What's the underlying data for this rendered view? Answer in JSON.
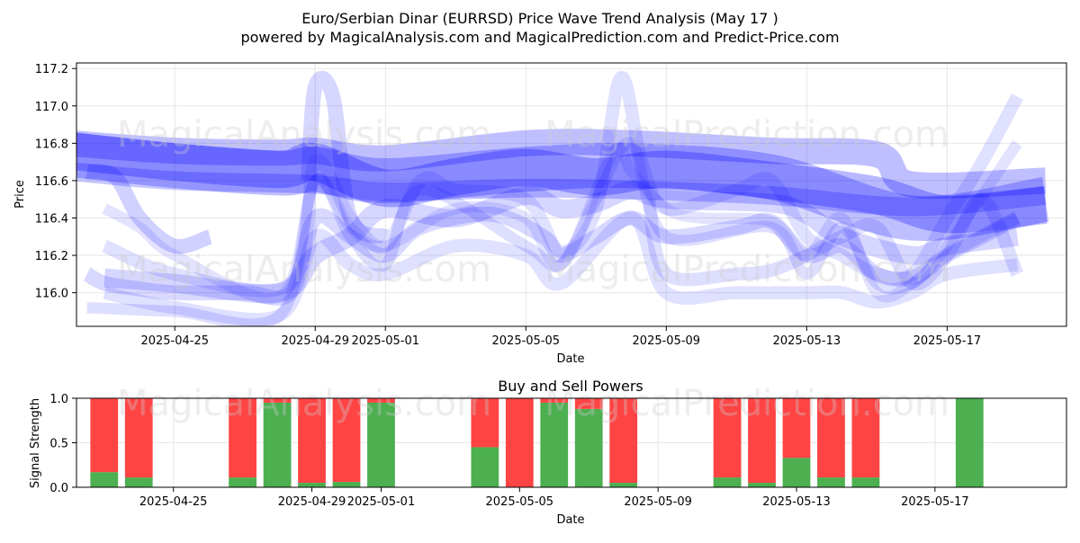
{
  "header": {
    "title": "Euro/Serbian Dinar (EURRSD) Price Wave Trend Analysis (May 17 )",
    "subtitle": "powered by MagicalAnalysis.com and MagicalPrediction.com and Predict-Price.com"
  },
  "watermarks": {
    "top_left": "MagicalAnalysis.com",
    "top_right": "MagicalPrediction.com",
    "mid_left": "MagicalAnalysis.com",
    "mid_right": "MagicalPrediction.com",
    "bottom_left": "MagicalAnalysis.com",
    "bottom_right": "MagicalPrediction.com"
  },
  "colors": {
    "wave": "#0000ff",
    "buy": "#4caf50",
    "sell": "#ff4444",
    "grid": "#e6e6e6"
  },
  "chart_data": [
    {
      "type": "area",
      "title": "",
      "xlabel": "Date",
      "ylabel": "Price",
      "xlim": [
        "2025-04-22",
        "2025-05-20"
      ],
      "ylim": [
        115.82,
        117.23
      ],
      "x_ticks": [
        "2025-04-25",
        "2025-04-29",
        "2025-05-01",
        "2025-05-05",
        "2025-05-09",
        "2025-05-13",
        "2025-05-17"
      ],
      "y_ticks": [
        116.0,
        116.2,
        116.4,
        116.6,
        116.8,
        117.0,
        117.2
      ],
      "y_tick_labels": [
        "116.0",
        "116.2",
        "116.4",
        "116.6",
        "116.8",
        "117.0",
        "117.2"
      ],
      "grid": true,
      "series": [
        {
          "x": [
            "2025-04-22",
            "2025-04-25",
            "2025-04-28",
            "2025-04-29",
            "2025-05-01",
            "2025-05-03",
            "2025-05-05",
            "2025-05-07",
            "2025-05-09",
            "2025-05-12",
            "2025-05-15",
            "2025-05-17",
            "2025-05-19.8"
          ],
          "y": [
            116.76,
            116.7,
            116.66,
            116.7,
            116.56,
            116.62,
            116.67,
            116.62,
            116.66,
            116.6,
            116.52,
            116.42,
            116.47
          ],
          "width": 0.2,
          "alpha": 0.28
        },
        {
          "x": [
            "2025-04-22",
            "2025-04-25",
            "2025-04-28",
            "2025-04-29",
            "2025-05-01",
            "2025-05-05",
            "2025-05-08",
            "2025-05-12",
            "2025-05-16",
            "2025-05-19.8"
          ],
          "y": [
            116.74,
            116.68,
            116.64,
            116.66,
            116.6,
            116.66,
            116.68,
            116.62,
            116.4,
            116.5
          ],
          "width": 0.24,
          "alpha": 0.25
        },
        {
          "x": [
            "2025-04-22",
            "2025-04-25",
            "2025-04-28",
            "2025-04-29",
            "2025-05-01",
            "2025-05-05",
            "2025-05-08",
            "2025-05-12",
            "2025-05-15",
            "2025-05-16",
            "2025-05-19.8"
          ],
          "y": [
            116.8,
            116.76,
            116.75,
            116.76,
            116.72,
            116.8,
            116.8,
            116.76,
            116.74,
            116.58,
            116.6
          ],
          "width": 0.14,
          "alpha": 0.25
        },
        {
          "x": [
            "2025-04-22",
            "2025-04-25",
            "2025-04-29",
            "2025-05-01",
            "2025-05-05",
            "2025-05-08",
            "2025-05-12",
            "2025-05-16",
            "2025-05-19.8"
          ],
          "y": [
            116.65,
            116.6,
            116.58,
            116.54,
            116.56,
            116.55,
            116.52,
            116.46,
            116.52
          ],
          "width": 0.1,
          "alpha": 0.22
        },
        {
          "x": [
            "2025-04-22.5",
            "2025-04-23.3",
            "2025-04-24",
            "2025-04-25",
            "2025-04-26"
          ],
          "y": [
            116.65,
            116.62,
            116.4,
            116.25,
            116.3
          ],
          "width": 0.08,
          "alpha": 0.18
        },
        {
          "x": [
            "2025-04-22.5",
            "2025-04-23",
            "2025-04-24",
            "2025-04-25",
            "2025-04-27",
            "2025-04-28.3",
            "2025-04-29",
            "2025-04-30",
            "2025-05-01",
            "2025-05-02",
            "2025-05-04",
            "2025-05-05.5",
            "2025-05-06",
            "2025-05-07",
            "2025-05-08",
            "2025-05-09",
            "2025-05-11",
            "2025-05-12",
            "2025-05-13",
            "2025-05-14",
            "2025-05-15",
            "2025-05-16",
            "2025-05-17",
            "2025-05-18",
            "2025-05-19"
          ],
          "y": [
            116.1,
            116.05,
            116.02,
            116.0,
            116.0,
            116.0,
            116.4,
            116.3,
            116.2,
            116.35,
            116.42,
            116.3,
            116.2,
            116.3,
            116.4,
            116.3,
            116.35,
            116.38,
            116.2,
            116.25,
            116.1,
            116.08,
            116.2,
            116.3,
            116.4
          ],
          "width": 0.08,
          "alpha": 0.15
        },
        {
          "x": [
            "2025-04-22.5",
            "2025-04-25",
            "2025-04-28",
            "2025-04-29",
            "2025-04-30",
            "2025-05-01",
            "2025-05-02",
            "2025-05-05",
            "2025-05-06",
            "2025-05-07",
            "2025-05-08",
            "2025-05-09",
            "2025-05-12",
            "2025-05-13",
            "2025-05-14",
            "2025-05-15",
            "2025-05-16",
            "2025-05-17",
            "2025-05-19"
          ],
          "y": [
            115.92,
            115.9,
            115.88,
            116.6,
            116.3,
            116.15,
            116.55,
            116.25,
            116.15,
            116.5,
            116.8,
            116.3,
            116.35,
            116.1,
            116.35,
            116.05,
            116.05,
            116.2,
            116.4
          ],
          "width": 0.06,
          "alpha": 0.13
        },
        {
          "x": [
            "2025-04-23",
            "2025-04-25",
            "2025-04-28.3",
            "2025-04-29",
            "2025-04-30",
            "2025-05-01",
            "2025-05-02",
            "2025-05-03",
            "2025-05-05",
            "2025-05-06",
            "2025-05-07",
            "2025-05-07.7",
            "2025-05-08.3",
            "2025-05-09",
            "2025-05-11",
            "2025-05-12",
            "2025-05-13",
            "2025-05-14",
            "2025-05-15",
            "2025-05-16",
            "2025-05-17",
            "2025-05-18",
            "2025-05-19"
          ],
          "y": [
            116.25,
            116.1,
            116.05,
            116.7,
            116.4,
            116.25,
            116.6,
            116.55,
            116.5,
            116.22,
            116.45,
            117.15,
            116.7,
            116.45,
            116.55,
            116.6,
            116.3,
            116.2,
            116.1,
            116.1,
            116.4,
            116.7,
            117.05
          ],
          "width": 0.07,
          "alpha": 0.12
        },
        {
          "x": [
            "2025-04-23",
            "2025-04-24",
            "2025-04-25",
            "2025-04-28",
            "2025-04-29",
            "2025-04-30",
            "2025-05-01",
            "2025-05-03",
            "2025-05-05",
            "2025-05-06",
            "2025-05-07.5",
            "2025-05-08",
            "2025-05-09",
            "2025-05-10",
            "2025-05-12",
            "2025-05-13",
            "2025-05-14",
            "2025-05-15",
            "2025-05-16",
            "2025-05-17",
            "2025-05-19"
          ],
          "y": [
            116.45,
            116.35,
            116.2,
            115.98,
            116.6,
            116.35,
            116.25,
            116.45,
            116.4,
            116.15,
            116.75,
            116.65,
            116.45,
            116.4,
            116.38,
            116.2,
            116.4,
            116.0,
            116.05,
            116.25,
            116.8
          ],
          "width": 0.06,
          "alpha": 0.11
        },
        {
          "x": [
            "2025-04-23",
            "2025-04-25",
            "2025-04-28",
            "2025-04-29",
            "2025-04-30",
            "2025-05-01",
            "2025-05-03",
            "2025-05-05",
            "2025-05-06",
            "2025-05-08",
            "2025-05-09",
            "2025-05-11",
            "2025-05-13",
            "2025-05-14",
            "2025-05-15",
            "2025-05-16",
            "2025-05-17",
            "2025-05-19"
          ],
          "y": [
            116.0,
            115.92,
            115.88,
            116.3,
            116.15,
            116.1,
            116.25,
            116.2,
            116.05,
            116.4,
            116.0,
            116.0,
            116.0,
            116.0,
            115.95,
            116.0,
            116.1,
            116.15
          ],
          "width": 0.07,
          "alpha": 0.12
        },
        {
          "x": [
            "2025-04-23",
            "2025-04-25",
            "2025-04-28",
            "2025-04-29",
            "2025-04-30",
            "2025-05-01",
            "2025-05-03",
            "2025-05-05",
            "2025-05-06",
            "2025-05-07",
            "2025-05-08",
            "2025-05-09",
            "2025-05-12",
            "2025-05-13",
            "2025-05-14",
            "2025-05-16",
            "2025-05-17",
            "2025-05-19"
          ],
          "y": [
            116.08,
            116.05,
            116.0,
            116.2,
            116.3,
            116.45,
            116.4,
            116.52,
            116.45,
            116.48,
            116.55,
            116.5,
            116.48,
            116.42,
            116.3,
            116.2,
            116.25,
            116.3
          ],
          "width": 0.1,
          "alpha": 0.16
        },
        {
          "x": [
            "2025-04-28.8",
            "2025-04-29",
            "2025-04-29.5",
            "2025-04-30",
            "2025-05-01"
          ],
          "y": [
            116.6,
            117.1,
            117.05,
            116.4,
            116.3
          ],
          "width": 0.08,
          "alpha": 0.16
        },
        {
          "x": [
            "2025-05-08.5",
            "2025-05-09",
            "2025-05-11",
            "2025-05-12",
            "2025-05-13",
            "2025-05-14",
            "2025-05-15",
            "2025-05-16",
            "2025-05-17",
            "2025-05-18",
            "2025-05-19"
          ],
          "y": [
            116.5,
            116.1,
            116.1,
            116.12,
            116.2,
            116.3,
            116.35,
            116.05,
            116.2,
            116.5,
            116.1
          ],
          "width": 0.07,
          "alpha": 0.13
        }
      ]
    },
    {
      "type": "bar",
      "title": "Buy and Sell Powers",
      "xlabel": "Date",
      "ylabel": "Signal Strength",
      "xlim": [
        "2025-04-22",
        "2025-05-20"
      ],
      "ylim": [
        0,
        1.0
      ],
      "x_ticks": [
        "2025-04-25",
        "2025-04-29",
        "2025-05-01",
        "2025-05-05",
        "2025-05-09",
        "2025-05-13",
        "2025-05-17"
      ],
      "y_ticks": [
        0.0,
        0.5,
        1.0
      ],
      "y_tick_labels": [
        "0.0",
        "0.5",
        "1.0"
      ],
      "grid": true,
      "dates": [
        "2025-04-23",
        "2025-04-24",
        "2025-04-27",
        "2025-04-28",
        "2025-04-29",
        "2025-04-30",
        "2025-05-01",
        "2025-05-04",
        "2025-05-05",
        "2025-05-06",
        "2025-05-07",
        "2025-05-08",
        "2025-05-11",
        "2025-05-12",
        "2025-05-13",
        "2025-05-14",
        "2025-05-15",
        "2025-05-18"
      ],
      "buy": [
        0.17,
        0.11,
        0.11,
        0.95,
        0.05,
        0.06,
        0.95,
        0.45,
        0.0,
        0.95,
        0.88,
        0.05,
        0.11,
        0.05,
        0.33,
        0.11,
        0.11,
        1.0
      ],
      "sell": [
        0.83,
        0.89,
        0.89,
        0.05,
        0.95,
        0.94,
        0.05,
        0.55,
        1.0,
        0.05,
        0.12,
        0.95,
        0.89,
        0.95,
        0.67,
        0.89,
        0.89,
        0.0
      ]
    }
  ]
}
